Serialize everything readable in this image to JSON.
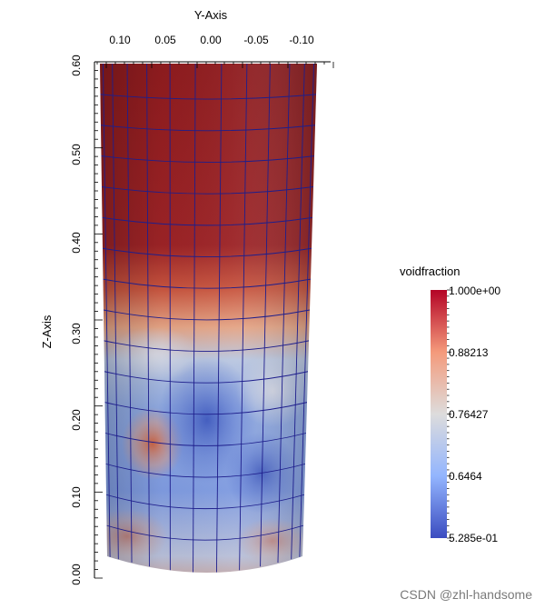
{
  "y_axis": {
    "title": "Y-Axis",
    "tick_labels": [
      "0.10",
      "0.05",
      "0.00",
      "-0.05",
      "-0.10"
    ]
  },
  "z_axis": {
    "title": "Z-Axis",
    "tick_labels": [
      "0.00",
      "0.10",
      "0.20",
      "0.30",
      "0.40",
      "0.50",
      "0.60"
    ]
  },
  "legend": {
    "title": "voidfraction",
    "labels": [
      "1.000e+00",
      "0.88213",
      "0.76427",
      "0.6464",
      "5.285e-01"
    ],
    "colors": [
      "#b40426",
      "#f49a7b",
      "#dddcdc",
      "#93b5fe",
      "#3b4cc0"
    ]
  },
  "watermark": "CSDN @zhl-handsome",
  "colors": {
    "mesh_line": "#1e1e8c",
    "high": "#8f1a1a",
    "low": "#6f8fd6"
  }
}
